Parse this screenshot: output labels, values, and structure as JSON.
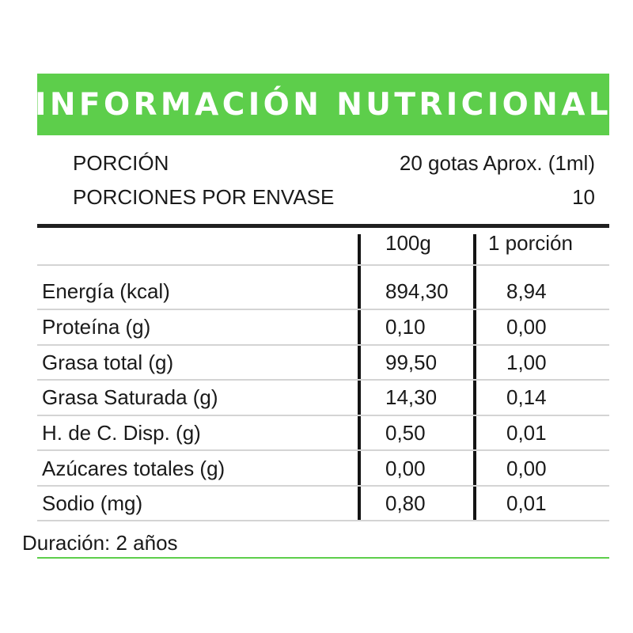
{
  "title": "INFORMACIÓN NUTRICIONAL",
  "serving": {
    "portion_label": "PORCIÓN",
    "portion_value": "20 gotas Aprox. (1ml)",
    "servings_label": "PORCIONES POR ENVASE",
    "servings_value": "10"
  },
  "table": {
    "col_100g": "100g",
    "col_portion": "1 porción",
    "rows": [
      {
        "name": "Energía (kcal)",
        "per100": "894,30",
        "perPortion": "8,94"
      },
      {
        "name": "Proteína (g)",
        "per100": "0,10",
        "perPortion": "0,00"
      },
      {
        "name": "Grasa total (g)",
        "per100": "99,50",
        "perPortion": "1,00"
      },
      {
        "name": "Grasa Saturada (g)",
        "per100": "14,30",
        "perPortion": "0,14"
      },
      {
        "name": "H. de C. Disp. (g)",
        "per100": "0,50",
        "perPortion": "0,01"
      },
      {
        "name": "Azúcares totales (g)",
        "per100": "0,00",
        "perPortion": "0,00"
      },
      {
        "name": "Sodio (mg)",
        "per100": "0,80",
        "perPortion": "0,01"
      }
    ]
  },
  "footer": "Duración: 2 años",
  "colors": {
    "accent_green": "#5dce4b",
    "rule_dark": "#1f1f1f",
    "rule_light": "#d4d4d4"
  }
}
